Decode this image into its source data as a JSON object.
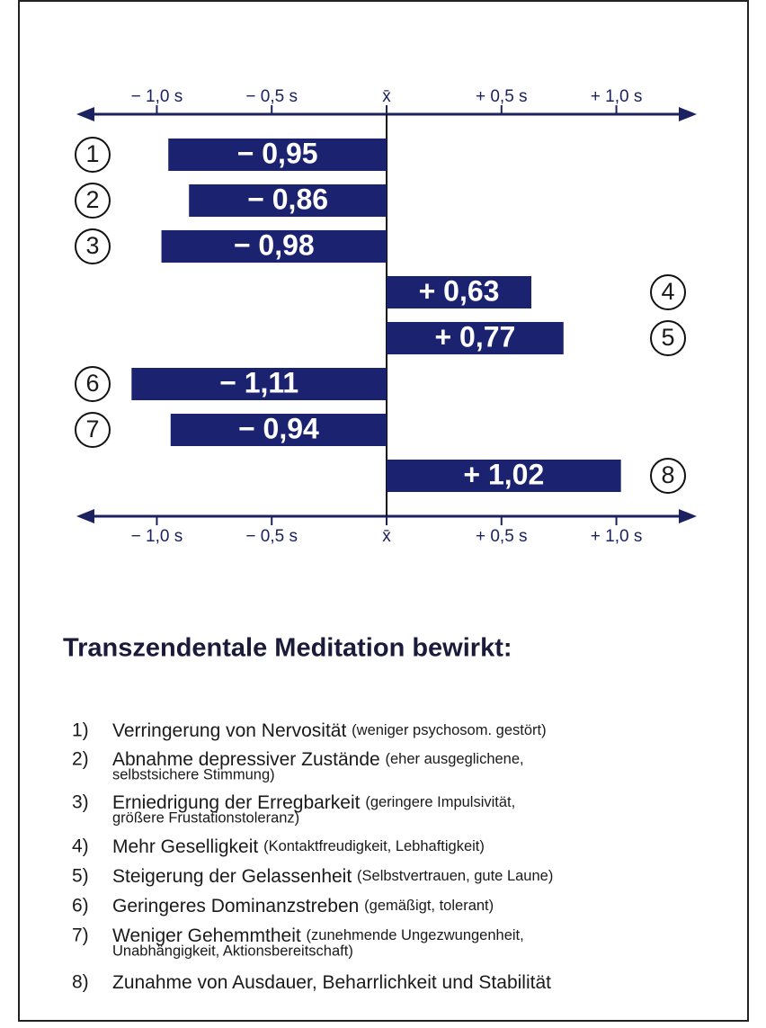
{
  "chart_data": {
    "type": "bar",
    "categories": [
      "1",
      "2",
      "3",
      "4",
      "5",
      "6",
      "7",
      "8"
    ],
    "values": [
      -0.95,
      -0.86,
      -0.98,
      0.63,
      0.77,
      -1.11,
      -0.94,
      1.02
    ],
    "value_labels": [
      "− 0,95",
      "− 0,86",
      "− 0,98",
      "+ 0,63",
      "+ 0,77",
      "− 1,11",
      "− 0,94",
      "+ 1,02"
    ],
    "color": "#1b2270",
    "xlim": [
      -1.35,
      1.35
    ],
    "xticks": [
      {
        "value": -1.0,
        "label": "− 1,0 s"
      },
      {
        "value": -0.5,
        "label": "− 0,5 s"
      },
      {
        "value": 0,
        "label": "x̄"
      },
      {
        "value": 0.5,
        "label": "+ 0,5 s"
      },
      {
        "value": 1.0,
        "label": "+ 1,0 s"
      }
    ]
  },
  "legend": {
    "title": "Transzendentale Meditation bewirkt:",
    "items": [
      {
        "label": "1)",
        "text": "Verringerung von Nervosität",
        "note": "(weniger psychosom. gestört)"
      },
      {
        "label": "2)",
        "text": "Abnahme depressiver Zustände",
        "note": "(eher ausgeglichene,",
        "note_line2": "selbstsichere Stimmung)"
      },
      {
        "label": "3)",
        "text": "Erniedrigung der Erregbarkeit",
        "note": "(geringere Impulsivität,",
        "note_line2": "größere Frustationstoleranz)"
      },
      {
        "label": "4)",
        "text": "Mehr Geselligkeit",
        "note": "(Kontaktfreudigkeit, Lebhaftigkeit)"
      },
      {
        "label": "5)",
        "text": "Steigerung der Gelassenheit",
        "note": "(Selbstvertrauen, gute Laune)"
      },
      {
        "label": "6)",
        "text": "Geringeres Dominanzstreben",
        "note": "(gemäßigt, tolerant)"
      },
      {
        "label": "7)",
        "text": "Weniger Gehemmtheit",
        "note": "(zunehmende Ungezwungenheit,",
        "note_line2": "Unabhängigkeit, Aktionsbereitschaft)"
      },
      {
        "label": "8)",
        "text": "Zunahme von Ausdauer, Beharrlichkeit und Stabilität"
      }
    ]
  }
}
